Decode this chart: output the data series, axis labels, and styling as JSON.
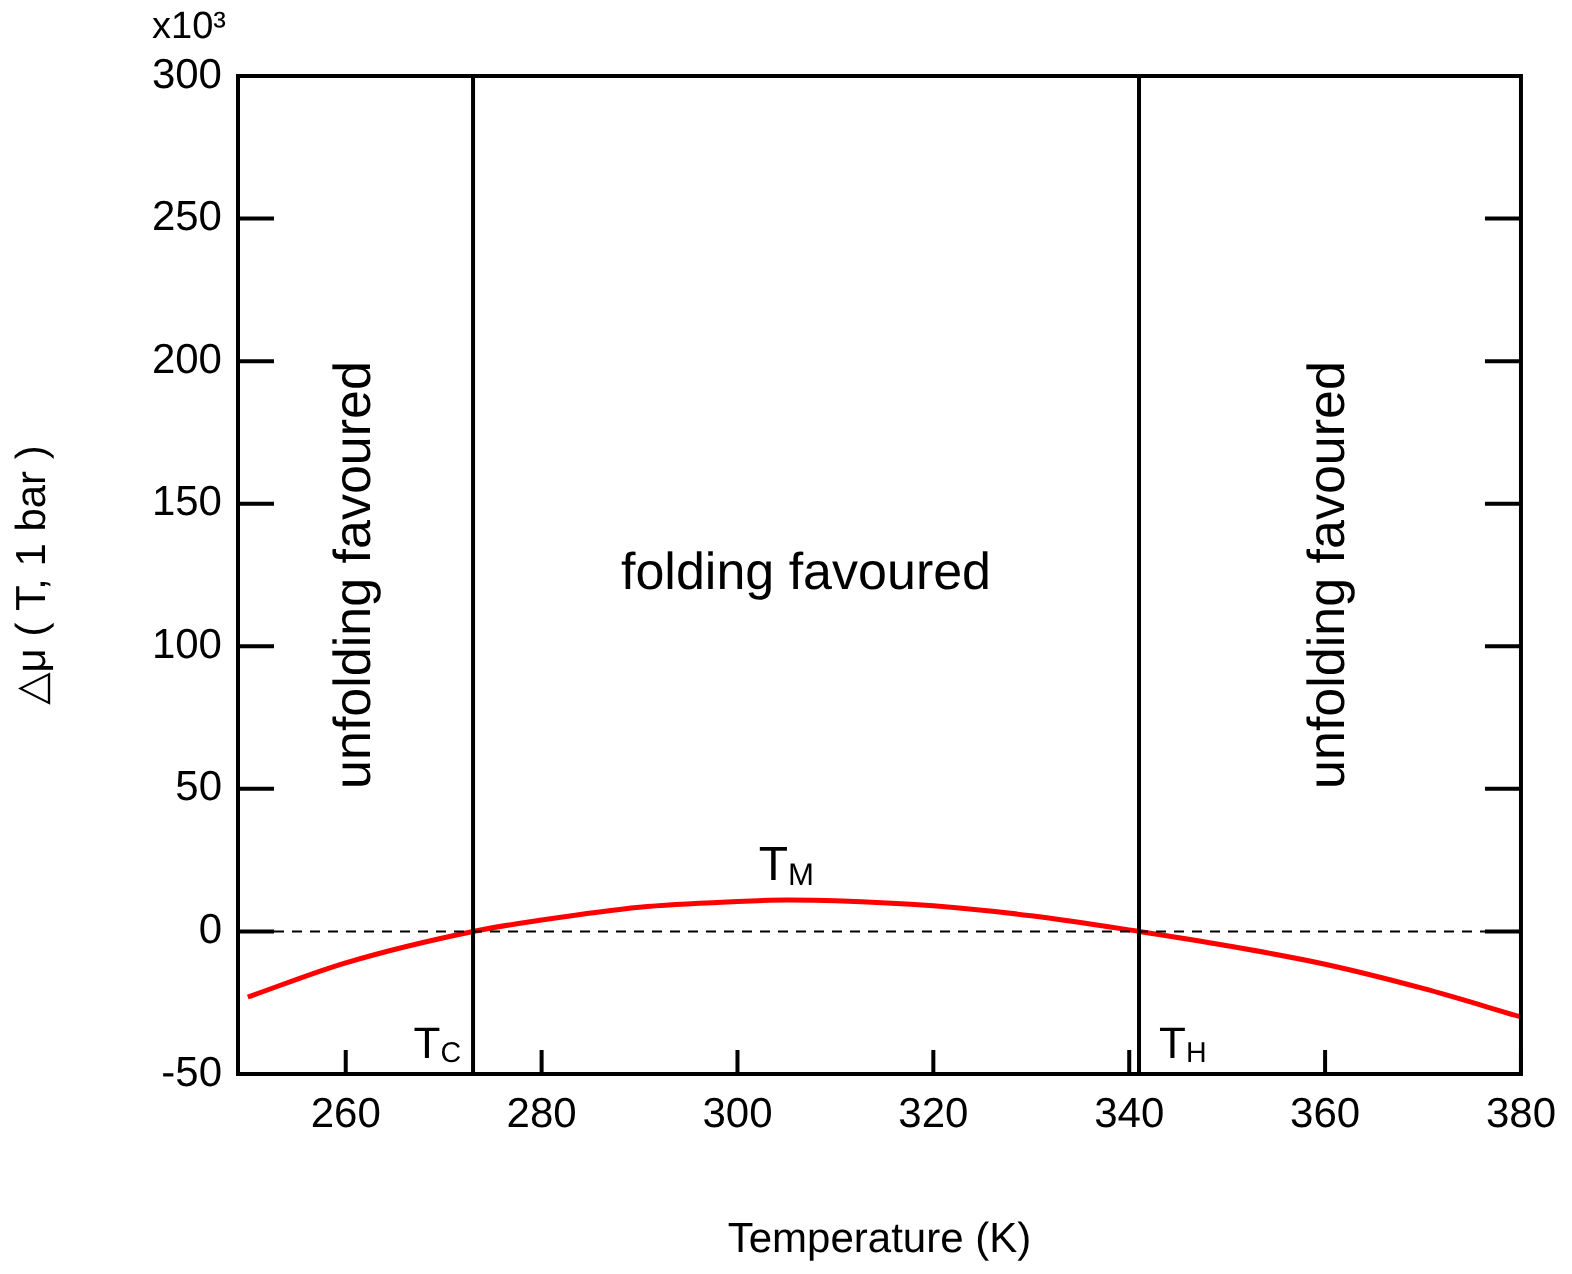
{
  "chart_data": {
    "type": "line",
    "xlabel": "Temperature (K)",
    "ylabel": "△μ ( T, 1 bar )",
    "x": [
      250,
      260,
      273,
      280,
      290,
      300,
      305,
      310,
      320,
      330,
      341,
      350,
      360,
      370,
      380
    ],
    "series": [
      {
        "color": "#ff0000",
        "values": [
          -23,
          -11,
          0,
          4,
          8.5,
          10.5,
          11,
          10.8,
          9,
          5.5,
          0,
          -5,
          -11.5,
          -20,
          -30
        ]
      }
    ],
    "xlim": [
      249,
      380
    ],
    "xticks": [
      260,
      280,
      300,
      320,
      340,
      360,
      380
    ],
    "ylim": [
      -50,
      300
    ],
    "yticks": [
      -50,
      0,
      50,
      100,
      150,
      200,
      250,
      300
    ],
    "ref_lines": [
      {
        "axis": "x",
        "value": 273,
        "label": "T$_{C}$",
        "color": "#000000",
        "line_style": "solid"
      },
      {
        "axis": "x",
        "value": 341,
        "label": "T$_{H}$",
        "color": "#000000",
        "line_style": "solid"
      },
      {
        "axis": "y",
        "value": 0,
        "color": "#000000",
        "line_style": "dashed"
      }
    ],
    "annotations": [
      "unfolding favoured",
      "folding favoured",
      "unfolding favoured",
      "x10³",
      {
        "text": "T$_{M}$",
        "x": 305,
        "y": 11
      }
    ],
    "marker": "none",
    "line_style": "solid",
    "legend": false
  }
}
